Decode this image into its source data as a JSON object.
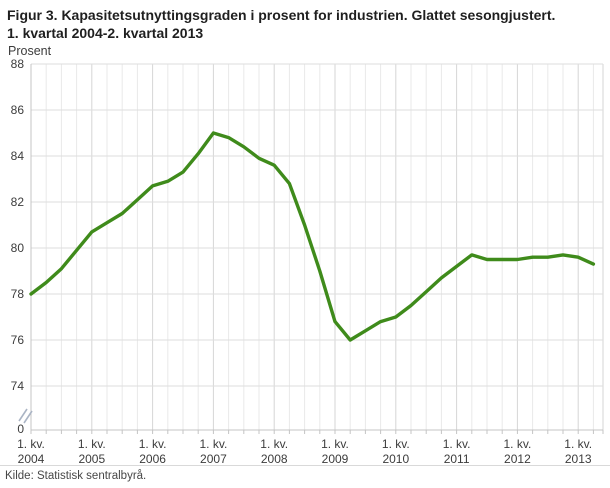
{
  "header": {
    "title": "Figur 3. Kapasitetsutnyttingsgraden i prosent for industrien. Glattet sesongjustert. 1. kvartal 2004-2. kvartal 2013"
  },
  "footer": {
    "source": "Kilde: Statistisk sentralbyrå."
  },
  "chart_data": {
    "type": "line",
    "title": "Figur 3. Kapasitetsutnyttingsgraden i prosent for industrien. Glattet sesongjustert. 1. kvartal 2004-2. kvartal 2013",
    "y_axis_label": "Prosent",
    "y_ticks": [
      88,
      86,
      84,
      82,
      80,
      78,
      76,
      74
    ],
    "y_axis_break": true,
    "y_axis_break_label": "0",
    "ylim_display": [
      74,
      88
    ],
    "x_tick_prefix": "1. kv.",
    "x_tick_years": [
      "2004",
      "2005",
      "2006",
      "2007",
      "2008",
      "2009",
      "2010",
      "2011",
      "2012",
      "2013"
    ],
    "frequency": "quarterly",
    "start_quarter": "1. kvartal 2004",
    "end_quarter": "2. kvartal 2013",
    "series": [
      {
        "name": "Kapasitetsutnyttingsgrad, glattet sesongjustert",
        "values": [
          78.0,
          78.5,
          79.1,
          79.9,
          80.7,
          81.1,
          81.5,
          82.1,
          82.7,
          82.9,
          83.3,
          84.1,
          85.0,
          84.8,
          84.4,
          83.9,
          83.6,
          82.8,
          81.0,
          79.0,
          76.8,
          76.0,
          76.4,
          76.8,
          77.0,
          77.5,
          78.1,
          78.7,
          79.2,
          79.7,
          79.5,
          79.5,
          79.5,
          79.6,
          79.6,
          79.7,
          79.6,
          79.3
        ]
      }
    ],
    "grid": true,
    "legend_position": "none",
    "colors": {
      "line": "#3f8b1b",
      "grid_minor": "#e9e9e9",
      "grid_major": "#d6d6d6",
      "grid_horizontal": "#dedede",
      "axis": "#c4c4c4",
      "axis_break": "#aab4c4"
    }
  }
}
